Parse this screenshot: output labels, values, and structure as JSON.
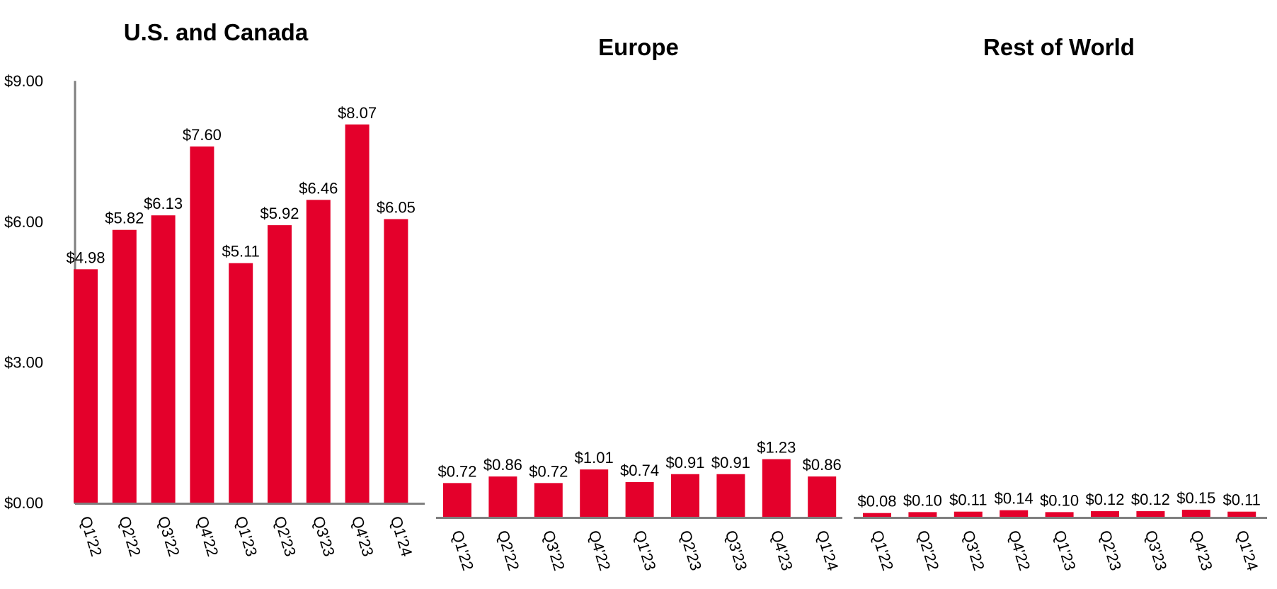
{
  "chart_data": {
    "type": "bar",
    "y_axis": {
      "ticks": [
        "$9.00",
        "$6.00",
        "$3.00",
        "$0.00"
      ],
      "tick_values": [
        9,
        6,
        3,
        0
      ],
      "ylim": [
        0,
        9
      ]
    },
    "bar_color": "#e4002b",
    "axis_color": "#7f7f7f",
    "panels": [
      {
        "title": "U.S. and Canada",
        "categories": [
          "Q1'22",
          "Q2'22",
          "Q3'22",
          "Q4'22",
          "Q1'23",
          "Q2'23",
          "Q3'23",
          "Q4'23",
          "Q1'24"
        ],
        "values": [
          4.98,
          5.82,
          6.13,
          7.6,
          5.11,
          5.92,
          6.46,
          8.07,
          6.05
        ],
        "labels": [
          "$4.98",
          "$5.82",
          "$6.13",
          "$7.60",
          "$5.11",
          "$5.92",
          "$6.46",
          "$8.07",
          "$6.05"
        ]
      },
      {
        "title": "Europe",
        "categories": [
          "Q1'22",
          "Q2'22",
          "Q3'22",
          "Q4'22",
          "Q1'23",
          "Q2'23",
          "Q3'23",
          "Q4'23",
          "Q1'24"
        ],
        "values": [
          0.72,
          0.86,
          0.72,
          1.01,
          0.74,
          0.91,
          0.91,
          1.23,
          0.86
        ],
        "labels": [
          "$0.72",
          "$0.86",
          "$0.72",
          "$1.01",
          "$0.74",
          "$0.91",
          "$0.91",
          "$1.23",
          "$0.86"
        ]
      },
      {
        "title": "Rest of World",
        "categories": [
          "Q1'22",
          "Q2'22",
          "Q3'22",
          "Q4'22",
          "Q1'23",
          "Q2'23",
          "Q3'23",
          "Q4'23",
          "Q1'24"
        ],
        "values": [
          0.08,
          0.1,
          0.11,
          0.14,
          0.1,
          0.12,
          0.12,
          0.15,
          0.11
        ],
        "labels": [
          "$0.08",
          "$0.10",
          "$0.11",
          "$0.14",
          "$0.10",
          "$0.12",
          "$0.12",
          "$0.15",
          "$0.11"
        ]
      }
    ]
  }
}
